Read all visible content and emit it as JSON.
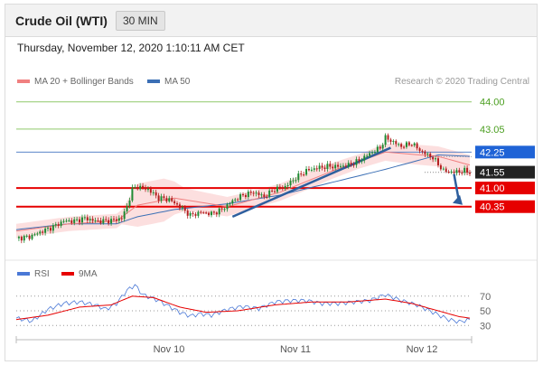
{
  "header": {
    "instrument": "Crude Oil (WTI)",
    "timeframe": "30 MIN"
  },
  "timestamp": "Thursday, November 12, 2020 1:10:11 AM CET",
  "colors": {
    "ma20": "#f08080",
    "ma50": "#3b6fb5",
    "bands": "#fcd9d9",
    "up_candle": "#1e8a32",
    "down_candle": "#b31e1e",
    "target_line": "#8fc96a",
    "pivot_line": "#5b86c9",
    "support_line": "#e60000",
    "rsi": "#4a78d6",
    "rsi_ma": "#e60000",
    "arrow": "#2e5f9e",
    "current_price_box": "#222222"
  },
  "chart_data": [
    {
      "type": "candlestick",
      "legend": [
        {
          "name": "MA 20 + Bollinger Bands",
          "color": "#f08080"
        },
        {
          "name": "MA 50",
          "color": "#3b6fb5"
        }
      ],
      "credit": "Research © 2020 Trading Central",
      "x_ticks": [
        "Nov 10",
        "Nov 11",
        "Nov 12"
      ],
      "ylim": [
        38.8,
        44.4
      ],
      "current_price": 41.55,
      "levels": [
        {
          "value": 44.0,
          "label": "44.00",
          "kind": "target"
        },
        {
          "value": 43.05,
          "label": "43.05",
          "kind": "target"
        },
        {
          "value": 42.25,
          "label": "42.25",
          "kind": "pivot"
        },
        {
          "value": 41.0,
          "label": "41.00",
          "kind": "support"
        },
        {
          "value": 40.35,
          "label": "40.35",
          "kind": "support"
        }
      ],
      "price_anchors": [
        [
          0,
          39.25
        ],
        [
          5,
          39.3
        ],
        [
          10,
          39.5
        ],
        [
          14,
          39.65
        ],
        [
          18,
          39.85
        ],
        [
          22,
          39.85
        ],
        [
          26,
          39.95
        ],
        [
          30,
          39.85
        ],
        [
          34,
          39.85
        ],
        [
          38,
          39.9
        ],
        [
          40,
          39.95
        ],
        [
          42,
          40.35
        ],
        [
          44,
          40.95
        ],
        [
          46,
          41.05
        ],
        [
          50,
          40.95
        ],
        [
          54,
          40.65
        ],
        [
          58,
          40.6
        ],
        [
          62,
          40.35
        ],
        [
          66,
          40.05
        ],
        [
          70,
          40.15
        ],
        [
          74,
          40.1
        ],
        [
          78,
          40.25
        ],
        [
          82,
          40.55
        ],
        [
          86,
          40.75
        ],
        [
          90,
          40.85
        ],
        [
          94,
          40.7
        ],
        [
          98,
          40.95
        ],
        [
          102,
          41.05
        ],
        [
          106,
          41.35
        ],
        [
          110,
          41.6
        ],
        [
          114,
          41.7
        ],
        [
          118,
          41.75
        ],
        [
          122,
          41.75
        ],
        [
          126,
          41.8
        ],
        [
          130,
          41.95
        ],
        [
          134,
          42.2
        ],
        [
          138,
          42.4
        ],
        [
          140,
          42.75
        ],
        [
          142,
          42.65
        ],
        [
          146,
          42.45
        ],
        [
          150,
          42.55
        ],
        [
          154,
          42.25
        ],
        [
          158,
          42.05
        ],
        [
          162,
          41.6
        ],
        [
          166,
          41.55
        ],
        [
          170,
          41.6
        ],
        [
          172,
          41.55
        ]
      ],
      "ma50_anchors": [
        [
          0,
          39.55
        ],
        [
          20,
          39.75
        ],
        [
          38,
          39.75
        ],
        [
          46,
          40.0
        ],
        [
          60,
          40.25
        ],
        [
          80,
          40.45
        ],
        [
          100,
          40.75
        ],
        [
          120,
          41.2
        ],
        [
          140,
          41.65
        ],
        [
          160,
          42.15
        ],
        [
          172,
          42.1
        ]
      ],
      "ma20_anchors": [
        [
          0,
          39.5
        ],
        [
          20,
          39.75
        ],
        [
          38,
          39.85
        ],
        [
          46,
          40.4
        ],
        [
          60,
          40.65
        ],
        [
          80,
          40.35
        ],
        [
          100,
          40.85
        ],
        [
          120,
          41.6
        ],
        [
          140,
          42.25
        ],
        [
          160,
          42.1
        ],
        [
          172,
          41.8
        ]
      ],
      "band_halfwidth_anchors": [
        [
          0,
          0.25
        ],
        [
          40,
          0.25
        ],
        [
          46,
          0.75
        ],
        [
          56,
          0.75
        ],
        [
          64,
          0.4
        ],
        [
          90,
          0.3
        ],
        [
          110,
          0.3
        ],
        [
          130,
          0.25
        ],
        [
          150,
          0.35
        ],
        [
          172,
          0.35
        ]
      ],
      "forecast": {
        "from": 41.55,
        "to": 40.35
      }
    },
    {
      "type": "line",
      "legend": [
        {
          "name": "RSI",
          "color": "#4a78d6"
        },
        {
          "name": "9MA",
          "color": "#e60000"
        }
      ],
      "ylim": [
        18,
        82
      ],
      "y_ticks": [
        70,
        50,
        30
      ],
      "rsi_anchors": [
        [
          0,
          40
        ],
        [
          6,
          36
        ],
        [
          12,
          52
        ],
        [
          18,
          60
        ],
        [
          24,
          62
        ],
        [
          30,
          58
        ],
        [
          34,
          52
        ],
        [
          38,
          60
        ],
        [
          42,
          78
        ],
        [
          45,
          85
        ],
        [
          48,
          72
        ],
        [
          54,
          64
        ],
        [
          58,
          56
        ],
        [
          62,
          48
        ],
        [
          66,
          43
        ],
        [
          70,
          46
        ],
        [
          74,
          44
        ],
        [
          80,
          52
        ],
        [
          86,
          56
        ],
        [
          92,
          53
        ],
        [
          98,
          62
        ],
        [
          104,
          64
        ],
        [
          110,
          64
        ],
        [
          116,
          60
        ],
        [
          122,
          60
        ],
        [
          128,
          62
        ],
        [
          134,
          64
        ],
        [
          140,
          72
        ],
        [
          146,
          64
        ],
        [
          152,
          58
        ],
        [
          158,
          48
        ],
        [
          164,
          38
        ],
        [
          168,
          35
        ],
        [
          172,
          38
        ]
      ],
      "rsi_ma_anchors": [
        [
          0,
          38
        ],
        [
          12,
          44
        ],
        [
          24,
          55
        ],
        [
          36,
          58
        ],
        [
          44,
          70
        ],
        [
          52,
          68
        ],
        [
          62,
          55
        ],
        [
          72,
          48
        ],
        [
          84,
          50
        ],
        [
          98,
          58
        ],
        [
          112,
          62
        ],
        [
          126,
          62
        ],
        [
          140,
          66
        ],
        [
          150,
          60
        ],
        [
          160,
          50
        ],
        [
          168,
          42
        ],
        [
          172,
          40
        ]
      ]
    }
  ]
}
